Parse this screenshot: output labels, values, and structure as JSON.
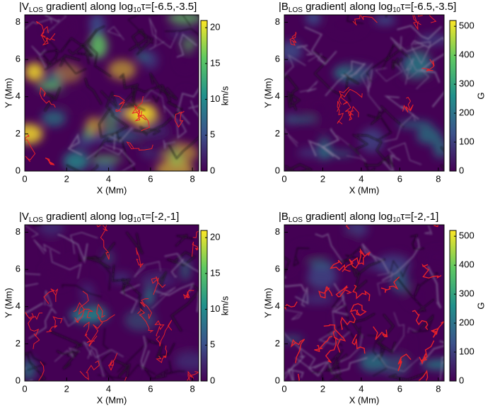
{
  "chart_data": [
    {
      "type": "heatmap",
      "title_parts": [
        "|V",
        "LOS",
        " gradient| along log",
        "10",
        "τ=[-6.5,-3.5]"
      ],
      "xlabel": "X (Mm)",
      "ylabel": "Y (Mm)",
      "xlim": [
        0,
        8.3
      ],
      "ylim": [
        0,
        8.4
      ],
      "xticks": [
        0,
        2,
        4,
        6,
        8
      ],
      "yticks": [
        0,
        2,
        4,
        6,
        8
      ],
      "colorbar": {
        "label": "km/s",
        "lim": [
          0,
          21
        ],
        "ticks": [
          0,
          5,
          10,
          15,
          20
        ]
      },
      "colormap": [
        "#440154",
        "#3b528b",
        "#21918c",
        "#5ec962",
        "#fde725"
      ],
      "contour_color": "#e8212a"
    },
    {
      "type": "heatmap",
      "title_parts": [
        "|B",
        "LOS",
        " gradient| along log",
        "10",
        "τ=[-6.5,-3.5]"
      ],
      "xlabel": "X (Mm)",
      "ylabel": "Y (Mm)",
      "xlim": [
        0,
        8.3
      ],
      "ylim": [
        0,
        8.4
      ],
      "xticks": [
        0,
        2,
        4,
        6,
        8
      ],
      "yticks": [
        0,
        2,
        4,
        6,
        8
      ],
      "colorbar": {
        "label": "G",
        "lim": [
          0,
          520
        ],
        "ticks": [
          0,
          100,
          200,
          300,
          400,
          500
        ]
      },
      "colormap": [
        "#440154",
        "#3b528b",
        "#21918c",
        "#5ec962",
        "#fde725"
      ],
      "contour_color": "#e8212a"
    },
    {
      "type": "heatmap",
      "title_parts": [
        "|V",
        "LOS",
        " gradient| along log",
        "10",
        "τ=[-2,-1]"
      ],
      "xlabel": "X (Mm)",
      "ylabel": "Y (Mm)",
      "xlim": [
        0,
        8.3
      ],
      "ylim": [
        0,
        8.4
      ],
      "xticks": [
        0,
        2,
        4,
        6,
        8
      ],
      "yticks": [
        0,
        2,
        4,
        6,
        8
      ],
      "colorbar": {
        "label": "km/s",
        "lim": [
          0,
          21
        ],
        "ticks": [
          0,
          5,
          10,
          15,
          20
        ]
      },
      "colormap": [
        "#440154",
        "#3b528b",
        "#21918c",
        "#5ec962",
        "#fde725"
      ],
      "contour_color": "#e8212a"
    },
    {
      "type": "heatmap",
      "title_parts": [
        "|B",
        "LOS",
        " gradient| along log",
        "10",
        "τ=[-2,-1]"
      ],
      "xlabel": "X (Mm)",
      "ylabel": "Y (Mm)",
      "xlim": [
        0,
        8.3
      ],
      "ylim": [
        0,
        8.4
      ],
      "xticks": [
        0,
        2,
        4,
        6,
        8
      ],
      "yticks": [
        0,
        2,
        4,
        6,
        8
      ],
      "colorbar": {
        "label": "G",
        "lim": [
          0,
          520
        ],
        "ticks": [
          0,
          100,
          200,
          300,
          400,
          500
        ]
      },
      "colormap": [
        "#440154",
        "#3b528b",
        "#21918c",
        "#5ec962",
        "#fde725"
      ],
      "contour_color": "#e8212a"
    }
  ]
}
